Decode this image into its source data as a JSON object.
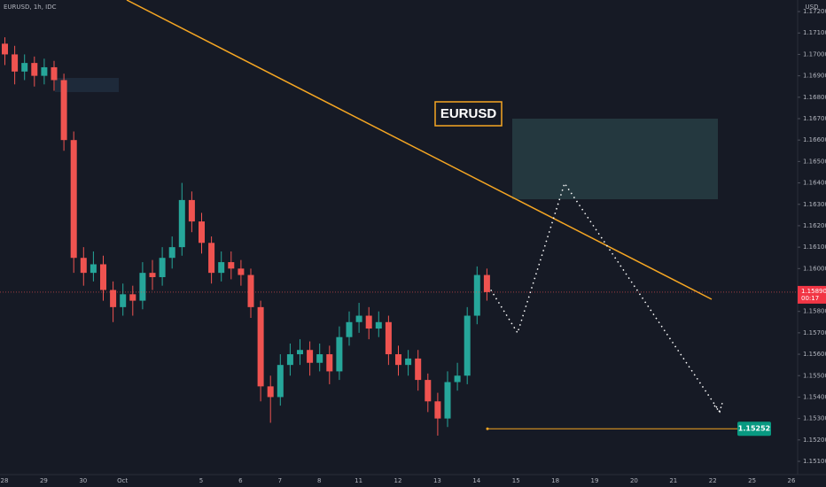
{
  "chart_data": {
    "type": "candlestick",
    "title": "EURUSD, 1h, IDC",
    "currency": "USD",
    "annotation": "EURUSD",
    "up_color": "#26a69a",
    "down_color": "#ef5350",
    "ylim": [
      1.15038,
      1.17254
    ],
    "yticks": [
      {
        "value": 1.151,
        "label": "1.15100"
      },
      {
        "value": 1.152,
        "label": "1.15200"
      },
      {
        "value": 1.153,
        "label": "1.15300"
      },
      {
        "value": 1.154,
        "label": "1.15400"
      },
      {
        "value": 1.155,
        "label": "1.15500"
      },
      {
        "value": 1.156,
        "label": "1.15600"
      },
      {
        "value": 1.157,
        "label": "1.15700"
      },
      {
        "value": 1.158,
        "label": "1.15800"
      },
      {
        "value": 1.159,
        "label": "1.15900"
      },
      {
        "value": 1.16,
        "label": "1.16000"
      },
      {
        "value": 1.161,
        "label": "1.16100"
      },
      {
        "value": 1.162,
        "label": "1.16200"
      },
      {
        "value": 1.163,
        "label": "1.16300"
      },
      {
        "value": 1.164,
        "label": "1.16400"
      },
      {
        "value": 1.165,
        "label": "1.16500"
      },
      {
        "value": 1.166,
        "label": "1.16600"
      },
      {
        "value": 1.167,
        "label": "1.16700"
      },
      {
        "value": 1.168,
        "label": "1.16800"
      },
      {
        "value": 1.169,
        "label": "1.16900"
      },
      {
        "value": 1.17,
        "label": "1.17000"
      },
      {
        "value": 1.171,
        "label": "1.17100"
      },
      {
        "value": 1.172,
        "label": "1.17200"
      }
    ],
    "x_labels": [
      "28",
      "29",
      "30",
      "Oct",
      null,
      "5",
      "6",
      "7",
      "8",
      "11",
      "12",
      "13",
      "14",
      "15",
      "18",
      "19",
      "20",
      "21",
      "22",
      "25",
      "26"
    ],
    "last_price": {
      "value": 1.1589,
      "label": "1.15890"
    },
    "countdown": "00:17",
    "target_level": 1.15252,
    "ohlc": [
      [
        1.1705,
        1.1708,
        1.1695,
        1.17
      ],
      [
        1.17,
        1.1704,
        1.1686,
        1.1692
      ],
      [
        1.1692,
        1.17,
        1.1688,
        1.1696
      ],
      [
        1.1696,
        1.1699,
        1.1685,
        1.169
      ],
      [
        1.169,
        1.1698,
        1.1686,
        1.1694
      ],
      [
        1.1694,
        1.1697,
        1.1683,
        1.1688
      ],
      [
        1.1688,
        1.1691,
        1.1655,
        1.166
      ],
      [
        1.166,
        1.1664,
        1.1598,
        1.1605
      ],
      [
        1.1605,
        1.161,
        1.1592,
        1.1598
      ],
      [
        1.1598,
        1.1608,
        1.1594,
        1.1602
      ],
      [
        1.1602,
        1.1606,
        1.1585,
        1.159
      ],
      [
        1.159,
        1.1594,
        1.1575,
        1.1582
      ],
      [
        1.1582,
        1.1593,
        1.1578,
        1.1588
      ],
      [
        1.1588,
        1.1592,
        1.1578,
        1.1585
      ],
      [
        1.1585,
        1.1603,
        1.1581,
        1.1598
      ],
      [
        1.1598,
        1.1604,
        1.159,
        1.1596
      ],
      [
        1.1596,
        1.161,
        1.1592,
        1.1605
      ],
      [
        1.1605,
        1.1615,
        1.16,
        1.161
      ],
      [
        1.161,
        1.164,
        1.1606,
        1.1632
      ],
      [
        1.1632,
        1.1636,
        1.1617,
        1.1622
      ],
      [
        1.1622,
        1.1626,
        1.1607,
        1.1612
      ],
      [
        1.1612,
        1.1615,
        1.1593,
        1.1598
      ],
      [
        1.1598,
        1.1608,
        1.1594,
        1.1603
      ],
      [
        1.1603,
        1.1608,
        1.1595,
        1.16
      ],
      [
        1.16,
        1.1604,
        1.1592,
        1.1597
      ],
      [
        1.1597,
        1.16,
        1.1577,
        1.1582
      ],
      [
        1.1582,
        1.1585,
        1.1538,
        1.1545
      ],
      [
        1.1545,
        1.155,
        1.1528,
        1.154
      ],
      [
        1.154,
        1.156,
        1.1536,
        1.1555
      ],
      [
        1.1555,
        1.1565,
        1.155,
        1.156
      ],
      [
        1.156,
        1.1567,
        1.1555,
        1.1562
      ],
      [
        1.1562,
        1.1566,
        1.155,
        1.1556
      ],
      [
        1.1556,
        1.1565,
        1.1552,
        1.156
      ],
      [
        1.156,
        1.1564,
        1.1546,
        1.1552
      ],
      [
        1.1552,
        1.1573,
        1.1548,
        1.1568
      ],
      [
        1.1568,
        1.158,
        1.1564,
        1.1575
      ],
      [
        1.1575,
        1.1584,
        1.157,
        1.1578
      ],
      [
        1.1578,
        1.1582,
        1.1567,
        1.1572
      ],
      [
        1.1572,
        1.158,
        1.1568,
        1.1575
      ],
      [
        1.1575,
        1.1578,
        1.1555,
        1.156
      ],
      [
        1.156,
        1.1564,
        1.155,
        1.1555
      ],
      [
        1.1555,
        1.1562,
        1.155,
        1.1558
      ],
      [
        1.1558,
        1.1562,
        1.1543,
        1.1548
      ],
      [
        1.1548,
        1.1551,
        1.1533,
        1.1538
      ],
      [
        1.1538,
        1.1542,
        1.1522,
        1.153
      ],
      [
        1.153,
        1.1552,
        1.1526,
        1.1547
      ],
      [
        1.1547,
        1.1556,
        1.1543,
        1.155
      ],
      [
        1.155,
        1.1582,
        1.1546,
        1.1578
      ],
      [
        1.1578,
        1.1601,
        1.1574,
        1.1597
      ],
      [
        1.1597,
        1.16,
        1.1585,
        1.1589
      ]
    ]
  }
}
